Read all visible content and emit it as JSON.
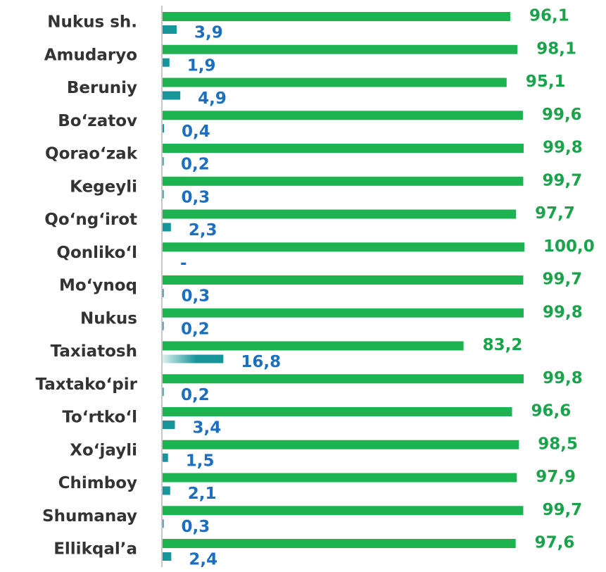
{
  "chart_data": {
    "type": "bar",
    "orientation": "horizontal",
    "categories": [
      "Nukus sh.",
      "Amudaryo",
      "Beruniy",
      "Bo‘zatov",
      "Qorao‘zak",
      "Kegeyli",
      "Qo‘ng‘irot",
      "Qonliko‘l",
      "Mo‘ynoq",
      "Nukus",
      "Taxiatosh",
      "Taxtako‘pir",
      "To‘rtko‘l",
      "Xo‘jayli",
      "Chimboy",
      "Shumanay",
      "Ellikqal’a"
    ],
    "xlim": [
      0,
      100
    ],
    "series": [
      {
        "color": "#1db350",
        "label_color": "#1aa34a",
        "values": [
          96.1,
          98.1,
          95.1,
          99.6,
          99.8,
          99.7,
          97.7,
          100.0,
          99.7,
          99.8,
          83.2,
          99.8,
          96.6,
          98.5,
          97.9,
          99.7,
          97.6
        ],
        "value_labels": [
          "96,1",
          "98,1",
          "95,1",
          "99,6",
          "99,8",
          "99,7",
          "97,7",
          "100,0",
          "99,7",
          "99,8",
          "83,2",
          "99,8",
          "96,6",
          "98,5",
          "97,9",
          "99,7",
          "97,6"
        ]
      },
      {
        "color": "#16969a",
        "label_color": "#1a6fc0",
        "values": [
          3.9,
          1.9,
          4.9,
          0.4,
          0.2,
          0.3,
          2.3,
          null,
          0.3,
          0.2,
          16.8,
          0.2,
          3.4,
          1.5,
          2.1,
          0.3,
          2.4
        ],
        "value_labels": [
          "3,9",
          "1,9",
          "4,9",
          "0,4",
          "0,2",
          "0,3",
          "2,3",
          "-",
          "0,3",
          "0,2",
          "16,8",
          "0,2",
          "3,4",
          "1,5",
          "2,1",
          "0,3",
          "2,4"
        ]
      }
    ]
  }
}
